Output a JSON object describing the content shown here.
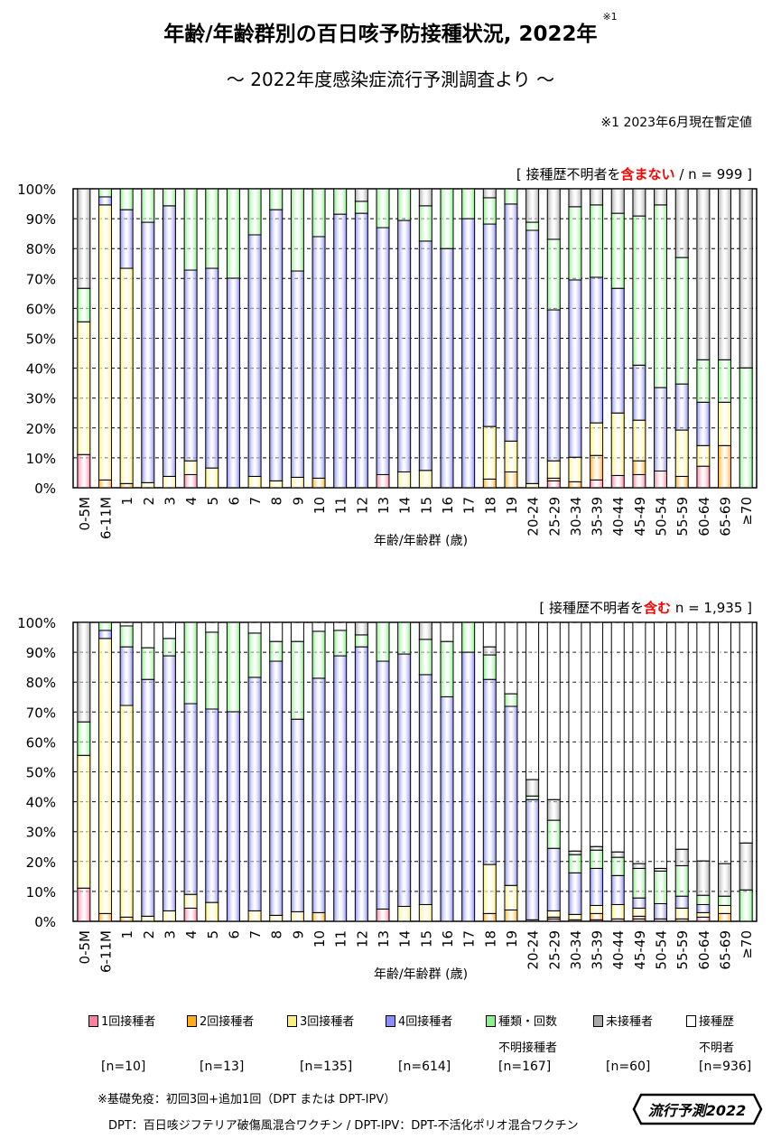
{
  "header": {
    "title": "年齢/年齢群別の百日咳予防接種状況, 2022年",
    "title_note": "※1",
    "subtitle": "～ 2022年度感染症流行予測調査より ～",
    "note": "※1  2023年6月現在暫定値"
  },
  "panels": [
    {
      "cap_pre": "[ 接種歴不明者を",
      "cap_em": "含まない",
      "cap_post": " / n = 999 ]"
    },
    {
      "cap_pre": "[ 接種歴不明者を",
      "cap_em": "含む",
      "cap_post": " n = 1,935 ]"
    }
  ],
  "legend": [
    {
      "label": "1回接種者",
      "label2": "",
      "n": "[n=10]",
      "color": "#ff7f9f"
    },
    {
      "label": "2回接種者",
      "label2": "",
      "n": "[n=13]",
      "color": "#ffae1a"
    },
    {
      "label": "3回接種者",
      "label2": "",
      "n": "[n=135]",
      "color": "#fff07a"
    },
    {
      "label": "4回接種者",
      "label2": "",
      "n": "[n=614]",
      "color": "#8c8cf5"
    },
    {
      "label": "種類・回数",
      "label2": "不明接種者",
      "n": "[n=167]",
      "color": "#8cf08c"
    },
    {
      "label": "未接種者",
      "label2": "",
      "n": "[n=60]",
      "color": "#aaaaaa"
    },
    {
      "label": "接種歴",
      "label2": "不明者",
      "n": "[n=936]",
      "color": "#ffffff"
    }
  ],
  "footnotes": {
    "line1": "※基礎免疫：初回3回+追加1回（DPT または DPT-IPV）",
    "line2": "DPT：百日咳ジフテリア破傷風混合ワクチン / DPT-IPV：DPT-不活化ポリオ混合ワクチン"
  },
  "logo": {
    "text": "流行予測2022"
  },
  "chart_data": [
    {
      "type": "bar",
      "stacked": true,
      "title": "",
      "xlabel": "年齢/年齢群 (歳)",
      "ylabel": "",
      "ylim": [
        0,
        100
      ],
      "yticks": [
        "0%",
        "10%",
        "20%",
        "30%",
        "40%",
        "50%",
        "60%",
        "70%",
        "80%",
        "90%",
        "100%"
      ],
      "grid": true,
      "categories": [
        "0-5M",
        "6-11M",
        "1",
        "2",
        "3",
        "4",
        "5",
        "6",
        "7",
        "8",
        "9",
        "10",
        "11",
        "12",
        "13",
        "14",
        "15",
        "16",
        "17",
        "18",
        "19",
        "20-24",
        "25-29",
        "30-34",
        "35-39",
        "40-44",
        "45-49",
        "50-54",
        "55-59",
        "60-64",
        "65-69",
        "≥70"
      ],
      "series_order": [
        "1回接種者",
        "2回接種者",
        "3回接種者",
        "4回接種者",
        "種類・回数不明接種者",
        "未接種者"
      ],
      "values": [
        [
          11.1,
          0,
          44.4,
          0,
          11.2,
          33.3
        ],
        [
          0,
          2.6,
          92.0,
          2.7,
          2.7,
          0
        ],
        [
          0,
          1.4,
          72.0,
          19.6,
          7.0,
          0
        ],
        [
          0,
          0,
          1.7,
          87.1,
          11.2,
          0
        ],
        [
          0,
          0,
          3.8,
          90.5,
          5.7,
          0
        ],
        [
          4.4,
          0,
          4.6,
          63.8,
          27.2,
          0
        ],
        [
          0,
          0,
          6.6,
          66.8,
          26.6,
          0
        ],
        [
          0,
          0,
          0,
          70.1,
          29.9,
          0
        ],
        [
          0,
          0,
          3.8,
          80.8,
          15.4,
          0
        ],
        [
          0,
          0,
          2.3,
          90.7,
          7.0,
          0
        ],
        [
          0,
          0,
          3.5,
          69.0,
          27.5,
          0
        ],
        [
          0,
          3.2,
          0,
          80.8,
          16.0,
          0
        ],
        [
          0,
          0,
          0,
          91.5,
          8.5,
          0
        ],
        [
          0,
          0,
          0,
          91.8,
          4.0,
          4.2
        ],
        [
          4.4,
          0,
          0,
          82.6,
          13.0,
          0
        ],
        [
          0,
          0,
          5.3,
          84.1,
          10.6,
          0
        ],
        [
          0,
          0,
          5.8,
          76.7,
          11.8,
          5.7
        ],
        [
          0,
          0,
          0,
          80.0,
          20.0,
          0
        ],
        [
          0,
          0,
          0,
          90.0,
          10.0,
          0
        ],
        [
          0,
          2.9,
          17.6,
          67.7,
          8.8,
          3.0
        ],
        [
          0,
          5.3,
          10.3,
          79.3,
          5.1,
          0
        ],
        [
          0,
          0,
          1.4,
          84.7,
          2.7,
          11.2
        ],
        [
          2.3,
          0.9,
          5.8,
          50.5,
          23.6,
          16.9
        ],
        [
          0,
          2.0,
          8.2,
          59.3,
          24.5,
          6.0
        ],
        [
          2.6,
          8.2,
          10.9,
          48.7,
          24.2,
          5.4
        ],
        [
          4.1,
          0,
          20.9,
          41.7,
          25.1,
          8.2
        ],
        [
          4.4,
          4.6,
          13.6,
          18.4,
          49.9,
          9.1
        ],
        [
          5.6,
          0,
          0,
          27.9,
          61.1,
          5.4
        ],
        [
          0,
          3.8,
          15.5,
          15.4,
          42.3,
          23.0
        ],
        [
          7.2,
          0,
          6.9,
          14.5,
          14.2,
          57.2
        ],
        [
          0,
          14.1,
          14.5,
          0,
          14.2,
          57.2
        ],
        [
          0,
          0,
          0,
          0,
          40.1,
          59.9
        ]
      ]
    },
    {
      "type": "bar",
      "stacked": true,
      "title": "",
      "xlabel": "年齢/年齢群 (歳)",
      "ylabel": "",
      "ylim": [
        0,
        100
      ],
      "yticks": [
        "0%",
        "10%",
        "20%",
        "30%",
        "40%",
        "50%",
        "60%",
        "70%",
        "80%",
        "90%",
        "100%"
      ],
      "grid": true,
      "categories": [
        "0-5M",
        "6-11M",
        "1",
        "2",
        "3",
        "4",
        "5",
        "6",
        "7",
        "8",
        "9",
        "10",
        "11",
        "12",
        "13",
        "14",
        "15",
        "16",
        "17",
        "18",
        "19",
        "20-24",
        "25-29",
        "30-34",
        "35-39",
        "40-44",
        "45-49",
        "50-54",
        "55-59",
        "60-64",
        "65-69",
        "≥70"
      ],
      "series_order": [
        "1回接種者",
        "2回接種者",
        "3回接種者",
        "4回接種者",
        "種類・回数不明接種者",
        "未接種者",
        "接種歴不明者"
      ],
      "values": [
        [
          11.1,
          0,
          44.4,
          0,
          11.2,
          33.3,
          0
        ],
        [
          0,
          2.6,
          92.0,
          2.7,
          2.7,
          0,
          0
        ],
        [
          0,
          1.4,
          70.8,
          19.6,
          7.0,
          0,
          1.2
        ],
        [
          0,
          0,
          1.7,
          79.2,
          10.6,
          0,
          8.5
        ],
        [
          0,
          0,
          3.5,
          85.3,
          5.8,
          0,
          5.4
        ],
        [
          4.4,
          0,
          4.6,
          63.8,
          27.2,
          0,
          0
        ],
        [
          0,
          0,
          6.3,
          64.7,
          25.7,
          0,
          3.3
        ],
        [
          0,
          0,
          0,
          70.1,
          29.9,
          0,
          0
        ],
        [
          0,
          0,
          3.5,
          78.1,
          14.8,
          0,
          3.6
        ],
        [
          0,
          0,
          2.0,
          85.0,
          6.6,
          0,
          6.4
        ],
        [
          0,
          0,
          3.2,
          64.4,
          26.0,
          0,
          6.4
        ],
        [
          0,
          2.9,
          0,
          78.4,
          15.7,
          0,
          3.0
        ],
        [
          0,
          0,
          0,
          88.8,
          8.5,
          0,
          2.7
        ],
        [
          0,
          0,
          0,
          91.8,
          4.0,
          4.2,
          0
        ],
        [
          4.1,
          0,
          0,
          82.9,
          13.0,
          0,
          0
        ],
        [
          0,
          0,
          5.0,
          84.4,
          10.6,
          0,
          0
        ],
        [
          0,
          0,
          5.6,
          76.9,
          11.8,
          5.7,
          0
        ],
        [
          0,
          0,
          0,
          75.1,
          18.5,
          0,
          6.4
        ],
        [
          0,
          0,
          0,
          90.0,
          10.0,
          0,
          0
        ],
        [
          0,
          2.6,
          16.4,
          61.9,
          8.2,
          2.7,
          8.2
        ],
        [
          0,
          3.8,
          8.2,
          59.9,
          4.2,
          0,
          23.9
        ],
        [
          0,
          0,
          0.5,
          40.2,
          1.2,
          5.5,
          52.6
        ],
        [
          0.8,
          0.6,
          2.1,
          20.9,
          9.4,
          6.9,
          59.3
        ],
        [
          0,
          0.5,
          1.8,
          13.9,
          6.1,
          1.2,
          76.5
        ],
        [
          0.5,
          2.1,
          2.7,
          12.4,
          6.1,
          1.2,
          75.0
        ],
        [
          0.8,
          0,
          4.8,
          9.7,
          6.1,
          1.8,
          76.8
        ],
        [
          0.8,
          0.9,
          2.7,
          3.4,
          9.9,
          1.6,
          80.7
        ],
        [
          0.8,
          0,
          0,
          5.1,
          10.9,
          0.9,
          82.3
        ],
        [
          0,
          0.8,
          3.6,
          4.0,
          10.2,
          5.5,
          75.9
        ],
        [
          1.4,
          0,
          1.5,
          2.7,
          3.1,
          11.5,
          79.8
        ],
        [
          0,
          2.6,
          2.7,
          0,
          3.1,
          10.9,
          80.7
        ],
        [
          0,
          0,
          0,
          0,
          10.5,
          15.7,
          73.8
        ]
      ]
    }
  ]
}
